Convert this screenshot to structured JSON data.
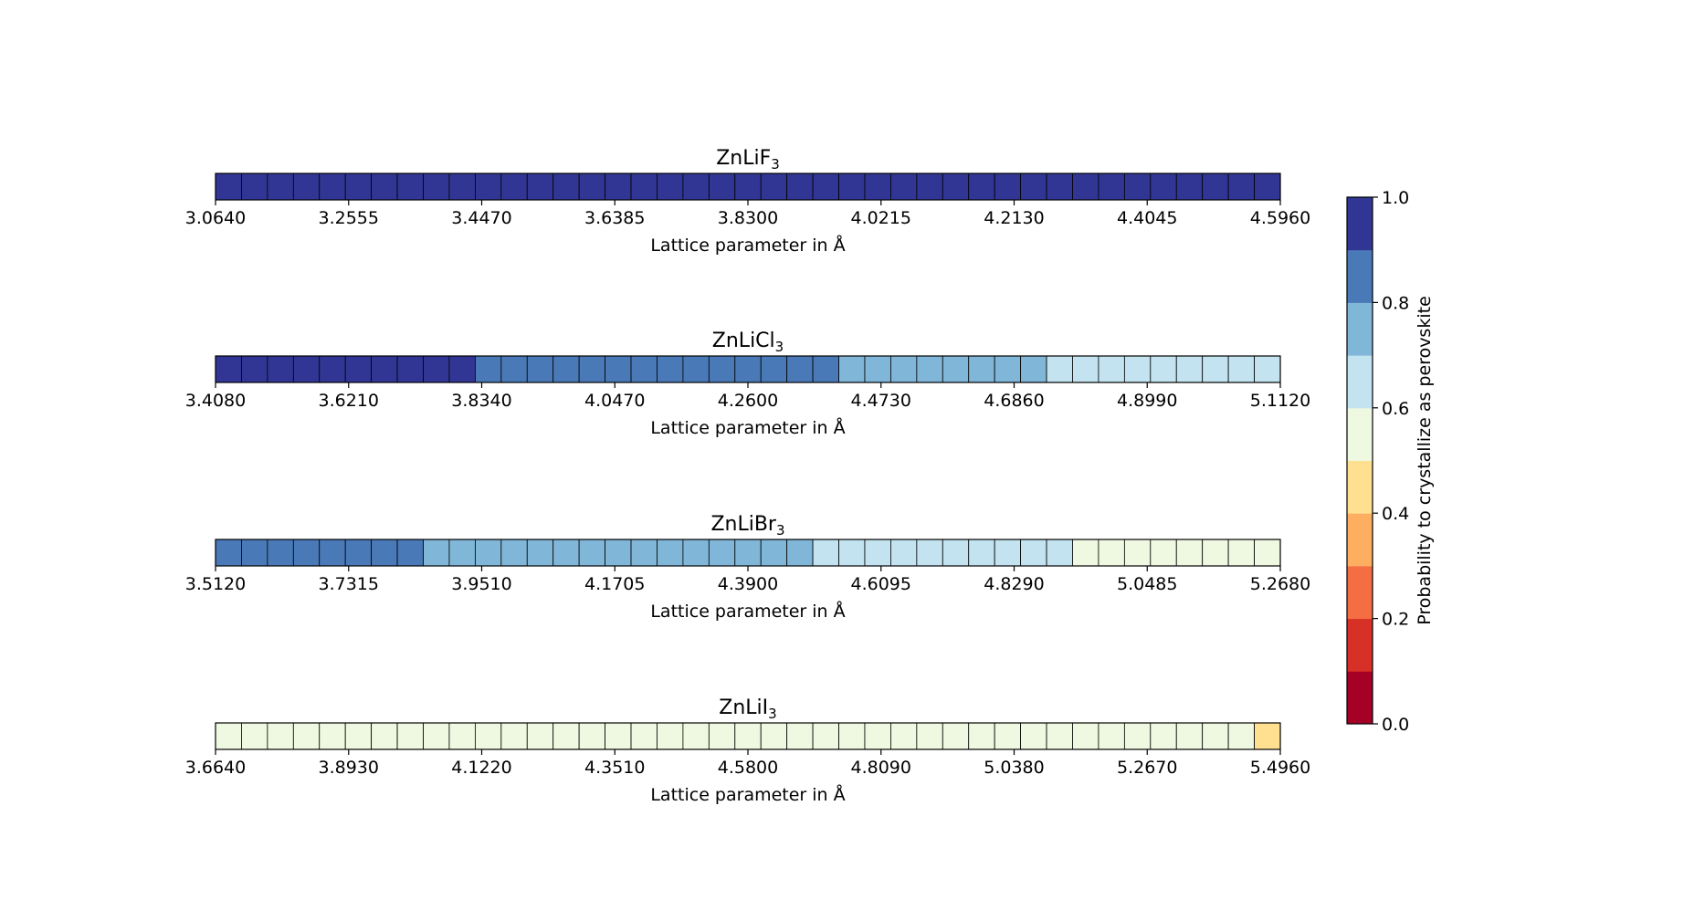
{
  "chart_data": [
    {
      "type": "heatmap",
      "title_base": "ZnLiF",
      "title_sub": "3",
      "xlabel": "Lattice parameter in Å",
      "tick_labels": [
        "3.0640",
        "3.2555",
        "3.4470",
        "3.6385",
        "3.8300",
        "4.0215",
        "4.2130",
        "4.4045",
        "4.5960"
      ],
      "x_range": [
        3.064,
        4.596
      ],
      "cell_count": 41,
      "values": [
        0.95,
        0.95,
        0.95,
        0.95,
        0.95,
        0.95,
        0.95,
        0.95,
        0.95,
        0.95,
        0.95,
        0.95,
        0.95,
        0.95,
        0.95,
        0.95,
        0.95,
        0.95,
        0.95,
        0.95,
        0.95,
        0.95,
        0.95,
        0.95,
        0.95,
        0.95,
        0.95,
        0.95,
        0.95,
        0.95,
        0.95,
        0.95,
        0.95,
        0.95,
        0.95,
        0.95,
        0.95,
        0.95,
        0.95,
        0.95,
        0.95
      ]
    },
    {
      "type": "heatmap",
      "title_base": "ZnLiCl",
      "title_sub": "3",
      "xlabel": "Lattice parameter in Å",
      "tick_labels": [
        "3.4080",
        "3.6210",
        "3.8340",
        "4.0470",
        "4.2600",
        "4.4730",
        "4.6860",
        "4.8990",
        "5.1120"
      ],
      "x_range": [
        3.408,
        5.112
      ],
      "cell_count": 41,
      "values": [
        0.95,
        0.95,
        0.95,
        0.95,
        0.95,
        0.95,
        0.95,
        0.95,
        0.95,
        0.95,
        0.85,
        0.85,
        0.85,
        0.85,
        0.85,
        0.85,
        0.85,
        0.85,
        0.85,
        0.85,
        0.85,
        0.85,
        0.85,
        0.85,
        0.75,
        0.75,
        0.75,
        0.75,
        0.75,
        0.75,
        0.75,
        0.75,
        0.65,
        0.65,
        0.65,
        0.65,
        0.65,
        0.65,
        0.65,
        0.65,
        0.65
      ]
    },
    {
      "type": "heatmap",
      "title_base": "ZnLiBr",
      "title_sub": "3",
      "xlabel": "Lattice parameter in Å",
      "tick_labels": [
        "3.5120",
        "3.7315",
        "3.9510",
        "4.1705",
        "4.3900",
        "4.6095",
        "4.8290",
        "5.0485",
        "5.2680"
      ],
      "x_range": [
        3.512,
        5.268
      ],
      "cell_count": 41,
      "values": [
        0.85,
        0.85,
        0.85,
        0.85,
        0.85,
        0.85,
        0.85,
        0.85,
        0.75,
        0.75,
        0.75,
        0.75,
        0.75,
        0.75,
        0.75,
        0.75,
        0.75,
        0.75,
        0.75,
        0.75,
        0.75,
        0.75,
        0.75,
        0.65,
        0.65,
        0.65,
        0.65,
        0.65,
        0.65,
        0.65,
        0.65,
        0.65,
        0.65,
        0.55,
        0.55,
        0.55,
        0.55,
        0.55,
        0.55,
        0.55,
        0.55
      ]
    },
    {
      "type": "heatmap",
      "title_base": "ZnLiI",
      "title_sub": "3",
      "xlabel": "Lattice parameter in Å",
      "tick_labels": [
        "3.6640",
        "3.8930",
        "4.1220",
        "4.3510",
        "4.5800",
        "4.8090",
        "5.0380",
        "5.2670",
        "5.4960"
      ],
      "x_range": [
        3.664,
        5.496
      ],
      "cell_count": 41,
      "values": [
        0.55,
        0.55,
        0.55,
        0.55,
        0.55,
        0.55,
        0.55,
        0.55,
        0.55,
        0.55,
        0.55,
        0.55,
        0.55,
        0.55,
        0.55,
        0.55,
        0.55,
        0.55,
        0.55,
        0.55,
        0.55,
        0.55,
        0.55,
        0.55,
        0.55,
        0.55,
        0.55,
        0.55,
        0.55,
        0.55,
        0.55,
        0.55,
        0.55,
        0.55,
        0.55,
        0.55,
        0.55,
        0.55,
        0.55,
        0.55,
        0.45
      ]
    }
  ],
  "colorbar": {
    "label": "Probability to crystallize as perovskite",
    "range": [
      0.0,
      1.0
    ],
    "tick_labels": [
      "0.0",
      "0.2",
      "0.4",
      "0.6",
      "0.8",
      "1.0"
    ],
    "colors": [
      "#a50026",
      "#d73027",
      "#f46d43",
      "#fdae61",
      "#fee090",
      "#eff8e0",
      "#c2e3ef",
      "#80b6d7",
      "#4a79b7",
      "#313695"
    ]
  }
}
